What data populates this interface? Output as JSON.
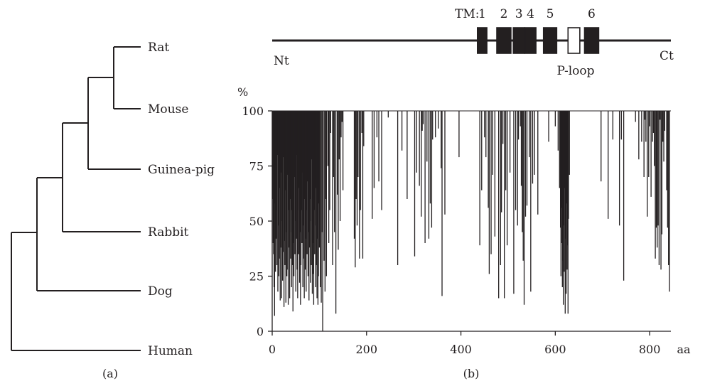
{
  "panel_a": {
    "label": "(a)",
    "taxa": [
      "Rat",
      "Mouse",
      "Guinea-pig",
      "Rabbit",
      "Dog",
      "Human"
    ]
  },
  "panel_b": {
    "label": "(b)",
    "domain_map": {
      "tm_prefix": "TM:",
      "tm_segments": [
        {
          "label": "1",
          "start": 435,
          "end": 455
        },
        {
          "label": "2",
          "start": 476,
          "end": 506
        },
        {
          "label": "3",
          "start": 511,
          "end": 535
        },
        {
          "label": "4",
          "start": 536,
          "end": 559
        },
        {
          "label": "5",
          "start": 575,
          "end": 603
        }
      ],
      "p_loop": {
        "label": "P-loop",
        "start": 627,
        "end": 652
      },
      "tm6": {
        "label": "6",
        "start": 662,
        "end": 692
      },
      "n_term_label": "Nt",
      "c_term_label": "Ct",
      "total_length": 845
    }
  },
  "chart_data": {
    "type": "bar",
    "xlabel": "aa",
    "ylabel": "%",
    "xlim": [
      0,
      845
    ],
    "ylim": [
      0,
      100
    ],
    "xticks": [
      0,
      200,
      400,
      600,
      800
    ],
    "yticks": [
      0,
      25,
      50,
      75,
      100
    ],
    "baseline": 100,
    "dips": [
      [
        1,
        60
      ],
      [
        2,
        40
      ],
      [
        3,
        35
      ],
      [
        4,
        20
      ],
      [
        5,
        7
      ],
      [
        6,
        58
      ],
      [
        7,
        27
      ],
      [
        8,
        42
      ],
      [
        9,
        55
      ],
      [
        10,
        30
      ],
      [
        11,
        80
      ],
      [
        12,
        18
      ],
      [
        13,
        48
      ],
      [
        14,
        25
      ],
      [
        15,
        33
      ],
      [
        16,
        65
      ],
      [
        17,
        14
      ],
      [
        18,
        38
      ],
      [
        19,
        72
      ],
      [
        20,
        15
      ],
      [
        21,
        50
      ],
      [
        22,
        23
      ],
      [
        23,
        79
      ],
      [
        24,
        36
      ],
      [
        25,
        11
      ],
      [
        26,
        41
      ],
      [
        27,
        30
      ],
      [
        28,
        64
      ],
      [
        29,
        13
      ],
      [
        30,
        45
      ],
      [
        31,
        25
      ],
      [
        32,
        71
      ],
      [
        33,
        28
      ],
      [
        34,
        12
      ],
      [
        35,
        55
      ],
      [
        36,
        38
      ],
      [
        37,
        15
      ],
      [
        38,
        60
      ],
      [
        39,
        33
      ],
      [
        40,
        45
      ],
      [
        41,
        20
      ],
      [
        42,
        55
      ],
      [
        43,
        30
      ],
      [
        44,
        9
      ],
      [
        45,
        40
      ],
      [
        46,
        25
      ],
      [
        47,
        70
      ],
      [
        48,
        35
      ],
      [
        49,
        50
      ],
      [
        50,
        18
      ],
      [
        51,
        42
      ],
      [
        52,
        80
      ],
      [
        53,
        28
      ],
      [
        54,
        15
      ],
      [
        55,
        55
      ],
      [
        56,
        35
      ],
      [
        57,
        65
      ],
      [
        58,
        22
      ],
      [
        59,
        45
      ],
      [
        60,
        12
      ],
      [
        61,
        30
      ],
      [
        62,
        55
      ],
      [
        63,
        40
      ],
      [
        64,
        72
      ],
      [
        65,
        20
      ],
      [
        66,
        48
      ],
      [
        67,
        33
      ],
      [
        68,
        15
      ],
      [
        69,
        60
      ],
      [
        70,
        28
      ],
      [
        71,
        42
      ],
      [
        72,
        18
      ],
      [
        73,
        55
      ],
      [
        74,
        35
      ],
      [
        75,
        68
      ],
      [
        76,
        25
      ],
      [
        77,
        45
      ],
      [
        78,
        14
      ],
      [
        79,
        38
      ],
      [
        80,
        60
      ],
      [
        81,
        22
      ],
      [
        82,
        50
      ],
      [
        83,
        30
      ],
      [
        84,
        78
      ],
      [
        85,
        17
      ],
      [
        86,
        40
      ],
      [
        87,
        26
      ],
      [
        88,
        12
      ],
      [
        89,
        55
      ],
      [
        90,
        35
      ],
      [
        91,
        48
      ],
      [
        92,
        20
      ],
      [
        93,
        65
      ],
      [
        94,
        30
      ],
      [
        95,
        15
      ],
      [
        96,
        42
      ],
      [
        97,
        12
      ],
      [
        98,
        25
      ],
      [
        99,
        58
      ],
      [
        100,
        38
      ],
      [
        102,
        20
      ],
      [
        104,
        13
      ],
      [
        106,
        45
      ],
      [
        107,
        0
      ],
      [
        110,
        32
      ],
      [
        112,
        18
      ],
      [
        113,
        60
      ],
      [
        115,
        25
      ],
      [
        118,
        75
      ],
      [
        120,
        40
      ],
      [
        122,
        55
      ],
      [
        124,
        90
      ],
      [
        128,
        30
      ],
      [
        130,
        70
      ],
      [
        132,
        45
      ],
      [
        135,
        8
      ],
      [
        138,
        62
      ],
      [
        140,
        37
      ],
      [
        142,
        78
      ],
      [
        144,
        50
      ],
      [
        146,
        88
      ],
      [
        148,
        95
      ],
      [
        150,
        64
      ],
      [
        174,
        42
      ],
      [
        176,
        29
      ],
      [
        178,
        60
      ],
      [
        180,
        48
      ],
      [
        182,
        70
      ],
      [
        185,
        33
      ],
      [
        187,
        55
      ],
      [
        190,
        90
      ],
      [
        192,
        33
      ],
      [
        194,
        84
      ],
      [
        212,
        51
      ],
      [
        216,
        65
      ],
      [
        222,
        88
      ],
      [
        226,
        68
      ],
      [
        232,
        55
      ],
      [
        246,
        97
      ],
      [
        266,
        30
      ],
      [
        275,
        82
      ],
      [
        286,
        60
      ],
      [
        302,
        34
      ],
      [
        306,
        72
      ],
      [
        312,
        66
      ],
      [
        316,
        52
      ],
      [
        318,
        91
      ],
      [
        320,
        94
      ],
      [
        324,
        40
      ],
      [
        328,
        77
      ],
      [
        332,
        42
      ],
      [
        335,
        58
      ],
      [
        338,
        47
      ],
      [
        340,
        87
      ],
      [
        346,
        88
      ],
      [
        352,
        92
      ],
      [
        358,
        74
      ],
      [
        360,
        16
      ],
      [
        366,
        53
      ],
      [
        396,
        79
      ],
      [
        440,
        39
      ],
      [
        444,
        64
      ],
      [
        450,
        88
      ],
      [
        453,
        79
      ],
      [
        458,
        56
      ],
      [
        460,
        26
      ],
      [
        464,
        35
      ],
      [
        467,
        71
      ],
      [
        472,
        43
      ],
      [
        480,
        15
      ],
      [
        484,
        30
      ],
      [
        486,
        54
      ],
      [
        489,
        85
      ],
      [
        492,
        15
      ],
      [
        495,
        64
      ],
      [
        498,
        39
      ],
      [
        504,
        72
      ],
      [
        512,
        17
      ],
      [
        516,
        55
      ],
      [
        520,
        48
      ],
      [
        522,
        87
      ],
      [
        526,
        93
      ],
      [
        528,
        66
      ],
      [
        530,
        45
      ],
      [
        532,
        32
      ],
      [
        534,
        12
      ],
      [
        537,
        52
      ],
      [
        540,
        57
      ],
      [
        545,
        79
      ],
      [
        548,
        18
      ],
      [
        552,
        67
      ],
      [
        556,
        71
      ],
      [
        563,
        53
      ],
      [
        586,
        86
      ],
      [
        600,
        93
      ],
      [
        606,
        82
      ],
      [
        609,
        65
      ],
      [
        611,
        47
      ],
      [
        612,
        25
      ],
      [
        613,
        40
      ],
      [
        614,
        56
      ],
      [
        615,
        20
      ],
      [
        616,
        32
      ],
      [
        617,
        12
      ],
      [
        618,
        48
      ],
      [
        619,
        27
      ],
      [
        620,
        65
      ],
      [
        621,
        8
      ],
      [
        622,
        42
      ],
      [
        623,
        17
      ],
      [
        624,
        58
      ],
      [
        625,
        28
      ],
      [
        626,
        39
      ],
      [
        627,
        8
      ],
      [
        628,
        51
      ],
      [
        630,
        71
      ],
      [
        697,
        68
      ],
      [
        712,
        51
      ],
      [
        722,
        87
      ],
      [
        736,
        48
      ],
      [
        740,
        87
      ],
      [
        745,
        23
      ],
      [
        770,
        95
      ],
      [
        777,
        78
      ],
      [
        783,
        86
      ],
      [
        788,
        70
      ],
      [
        790,
        96
      ],
      [
        792,
        86
      ],
      [
        795,
        52
      ],
      [
        798,
        70
      ],
      [
        800,
        93
      ],
      [
        803,
        61
      ],
      [
        806,
        86
      ],
      [
        808,
        90
      ],
      [
        810,
        75
      ],
      [
        812,
        33
      ],
      [
        814,
        47
      ],
      [
        816,
        38
      ],
      [
        818,
        48
      ],
      [
        820,
        30
      ],
      [
        822,
        96
      ],
      [
        824,
        28
      ],
      [
        826,
        44
      ],
      [
        828,
        86
      ],
      [
        830,
        77
      ],
      [
        832,
        91
      ],
      [
        836,
        64
      ],
      [
        838,
        47
      ],
      [
        840,
        30
      ],
      [
        842,
        18
      ]
    ]
  }
}
